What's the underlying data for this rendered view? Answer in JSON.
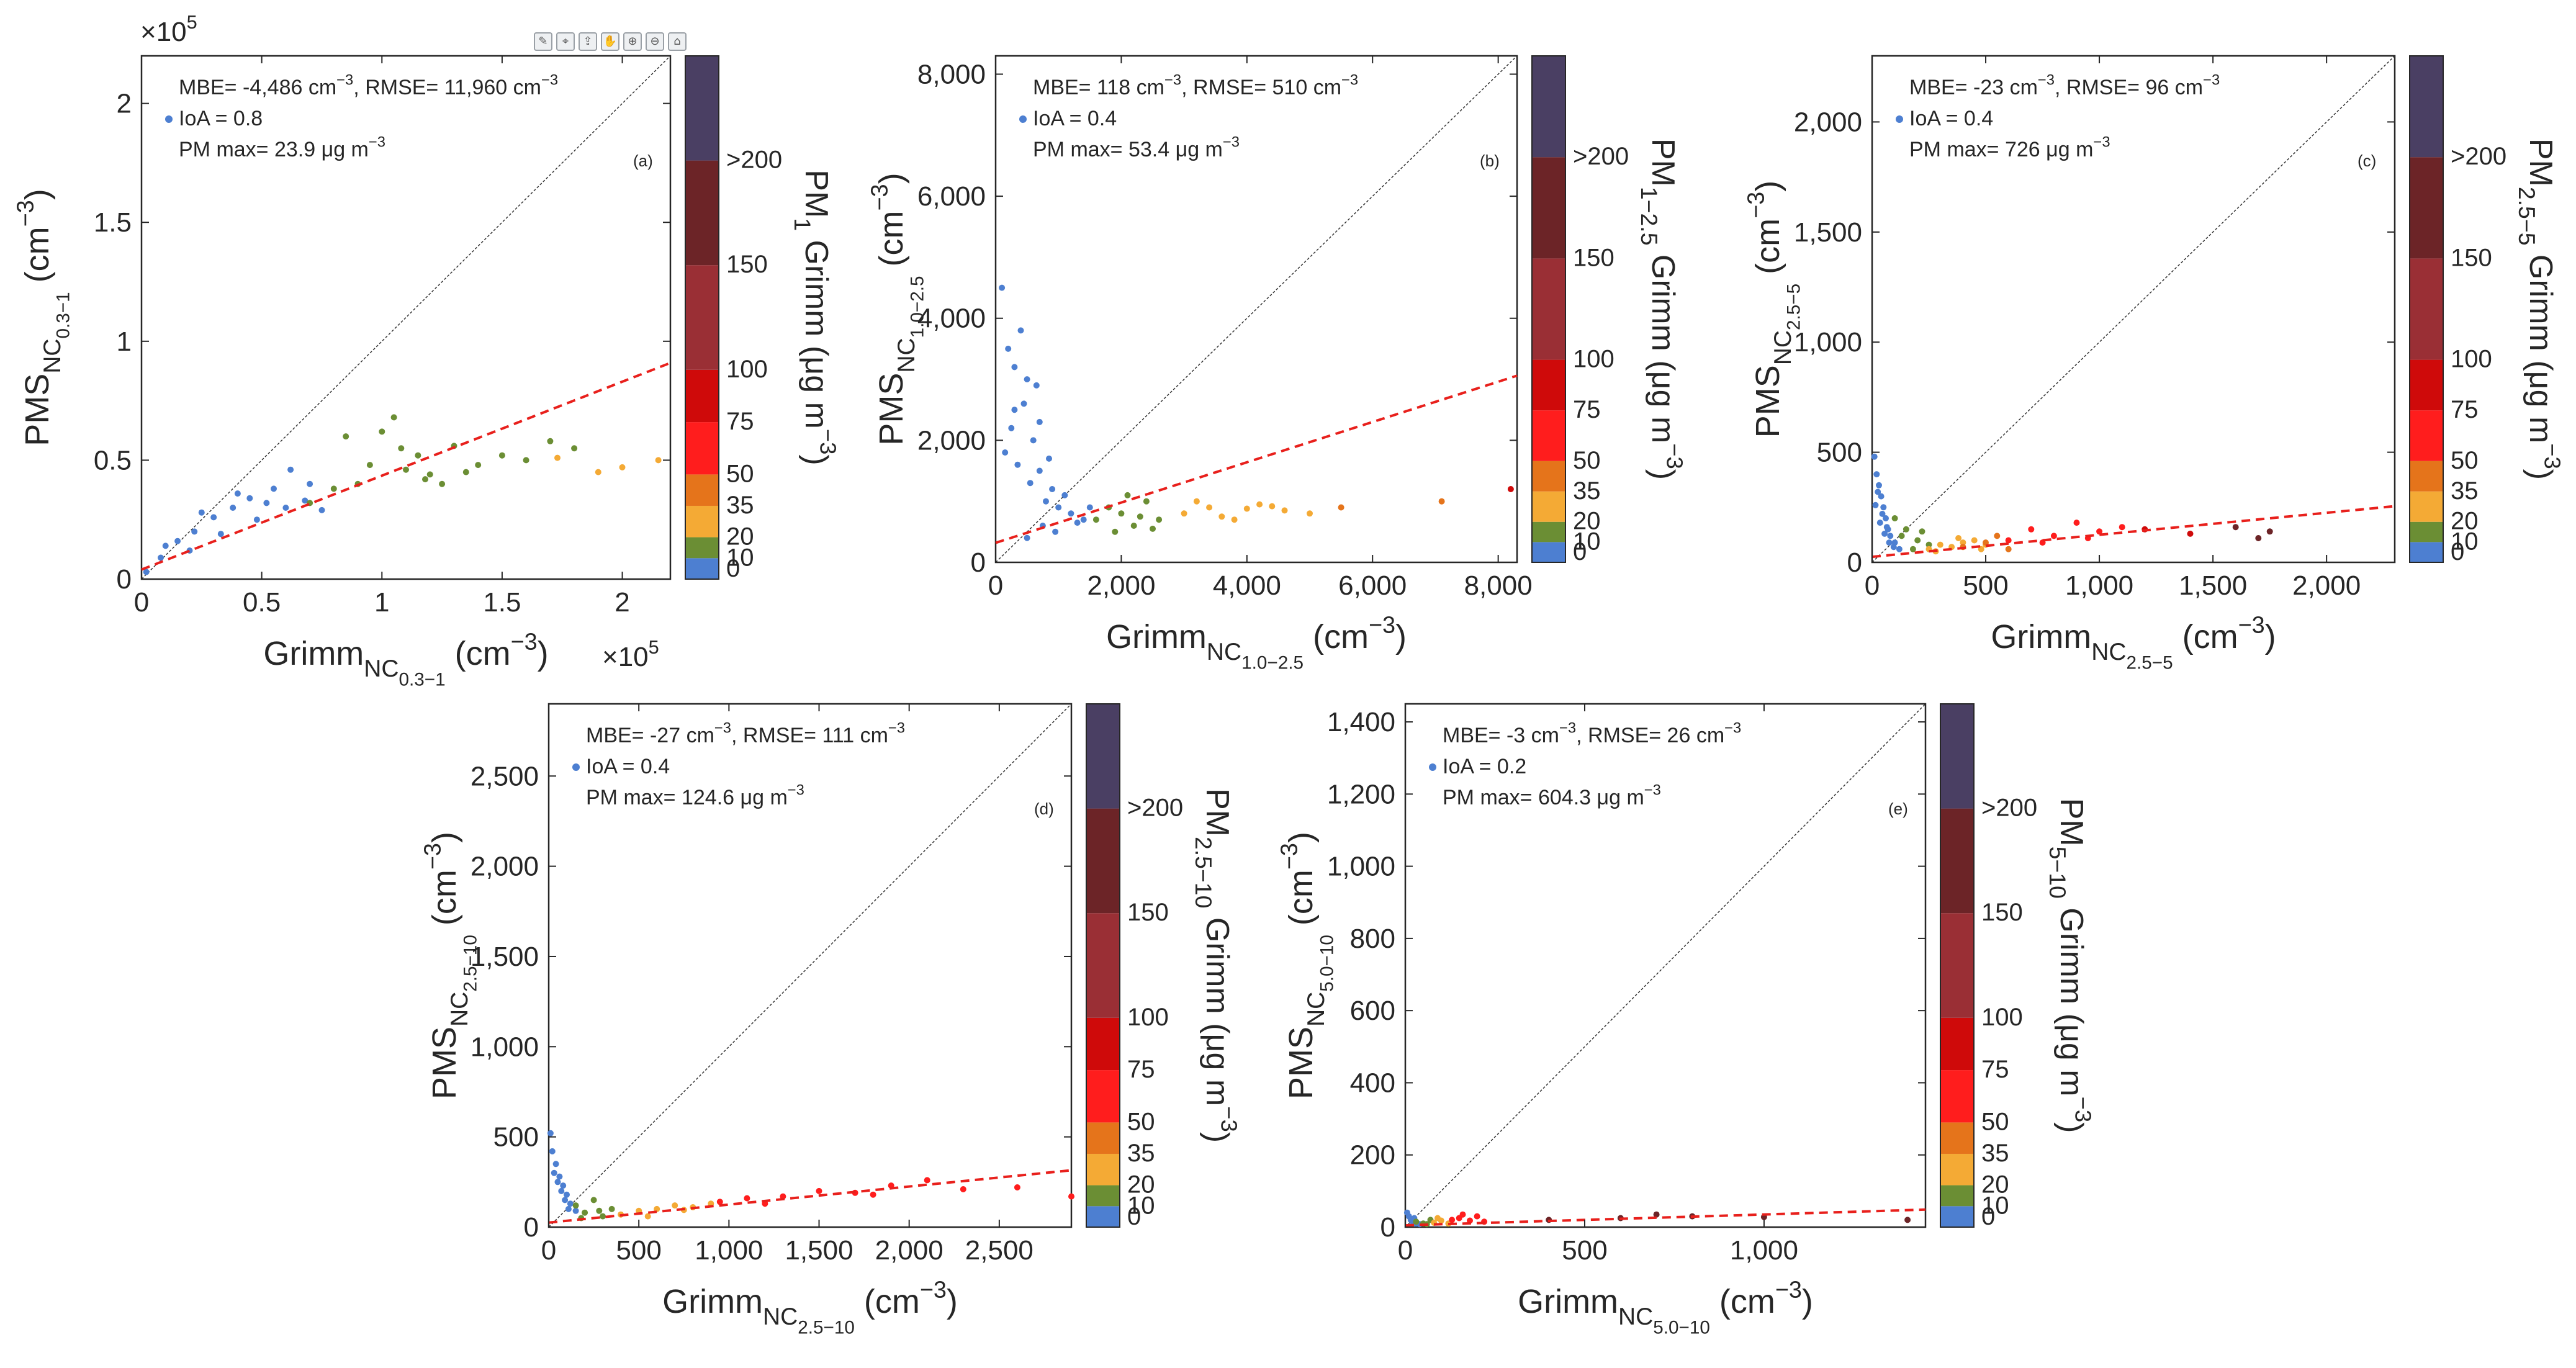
{
  "colorbar": {
    "labels": [
      "0",
      "10",
      "20",
      "35",
      "50",
      "75",
      "100",
      "150",
      ">200"
    ],
    "colors": [
      "#4d7fd1",
      "#6b8e34",
      "#f4aa35",
      "#e5741b",
      "#ff1d1d",
      "#cf0a0a",
      "#9a2f35",
      "#6c2427",
      "#4a3f63"
    ],
    "bins": [
      0,
      10,
      20,
      35,
      50,
      75,
      100,
      150,
      200,
      250
    ]
  },
  "toolbar": {
    "icons": [
      "brush-icon",
      "datatip-icon",
      "export-icon",
      "pan-icon",
      "zoom-in-icon",
      "zoom-out-icon",
      "home-icon"
    ]
  },
  "chart_data": [
    {
      "type": "scatter",
      "panel": "(a)",
      "ylabel_main": "PMS",
      "ylabel_sub": "NC",
      "ylabel_subsub": "0.3−1",
      "ylabel_unit": "(cm",
      "xlabel_main": "Grimm",
      "xlabel_sub": "NC",
      "xlabel_subsub": "0.3−1",
      "xlabel_unit": "(cm",
      "xlim": [
        0,
        220000
      ],
      "ylim": [
        0,
        220000
      ],
      "xticks": [
        0,
        50000,
        100000,
        150000,
        200000
      ],
      "xticklabels": [
        "0",
        "0.5",
        "1",
        "1.5",
        "2"
      ],
      "yticks": [
        0,
        50000,
        100000,
        150000,
        200000
      ],
      "yticklabels": [
        "0",
        "0.5",
        "1",
        "1.5",
        "2"
      ],
      "exponent": "×10",
      "exponent_power": "5",
      "stats": {
        "line1": "MBE= -4,486 cm",
        "line1b": ", RMSE= 11,960 cm",
        "line2": "IoA = 0.8",
        "line3": "PM max= 23.9 μg m"
      },
      "cbar_title": "PM",
      "cbar_sub": "1",
      "cbar_rest": " Grimm (μg m",
      "fit": {
        "intercept": 4000,
        "slope": 0.395
      },
      "series": [
        {
          "x": [
            2000,
            8000,
            15000,
            22000,
            30000,
            38000,
            45000,
            52000,
            60000,
            68000,
            75000,
            10000,
            25000,
            40000,
            55000,
            70000,
            33000,
            48000,
            20000,
            62000
          ],
          "y": [
            3000,
            9000,
            16000,
            20000,
            26000,
            30000,
            34000,
            32000,
            30000,
            33000,
            29000,
            14000,
            28000,
            36000,
            38000,
            40000,
            19000,
            25000,
            12000,
            46000
          ],
          "bin": 0
        },
        {
          "x": [
            70000,
            80000,
            90000,
            95000,
            100000,
            105000,
            110000,
            115000,
            120000,
            125000,
            130000,
            140000,
            150000,
            160000,
            170000,
            180000,
            85000,
            108000,
            118000,
            135000
          ],
          "y": [
            32000,
            38000,
            40000,
            48000,
            62000,
            68000,
            46000,
            52000,
            44000,
            40000,
            56000,
            48000,
            52000,
            50000,
            58000,
            55000,
            60000,
            55000,
            42000,
            45000
          ],
          "bin": 1
        },
        {
          "x": [
            173000,
            190000,
            200000,
            215000
          ],
          "y": [
            51000,
            45000,
            47000,
            50000
          ],
          "bin": 2
        }
      ]
    },
    {
      "type": "scatter",
      "panel": "(b)",
      "ylabel_main": "PMS",
      "ylabel_sub": "NC",
      "ylabel_subsub": "1.0−2.5",
      "ylabel_unit": "(cm",
      "xlabel_main": "Grimm",
      "xlabel_sub": "NC",
      "xlabel_subsub": "1.0−2.5",
      "xlabel_unit": "(cm",
      "xlim": [
        0,
        8300
      ],
      "ylim": [
        0,
        8300
      ],
      "xticks": [
        0,
        2000,
        4000,
        6000,
        8000
      ],
      "xticklabels": [
        "0",
        "2,000",
        "4,000",
        "6,000",
        "8,000"
      ],
      "yticks": [
        0,
        2000,
        4000,
        6000,
        8000
      ],
      "yticklabels": [
        "0",
        "2,000",
        "4,000",
        "6,000",
        "8,000"
      ],
      "stats": {
        "line1": "MBE= 118 cm",
        "line1b": ", RMSE= 510 cm",
        "line2": "IoA = 0.4",
        "line3": "PM max= 53.4 μg m"
      },
      "cbar_title": "PM",
      "cbar_sub": "1−2.5",
      "cbar_rest": " Grimm (μg m",
      "fit": {
        "intercept": 320,
        "slope": 0.33
      },
      "series": [
        {
          "x": [
            100,
            200,
            300,
            400,
            500,
            600,
            700,
            800,
            900,
            1000,
            1200,
            1400,
            150,
            250,
            350,
            450,
            550,
            650,
            750,
            850,
            950,
            1100,
            1300,
            1500,
            300,
            500,
            700
          ],
          "y": [
            4500,
            3500,
            2500,
            3800,
            3000,
            2000,
            1500,
            1000,
            1200,
            900,
            800,
            700,
            1800,
            2200,
            1600,
            2600,
            1300,
            2900,
            600,
            1700,
            500,
            1100,
            650,
            900,
            3200,
            400,
            2300
          ],
          "bin": 0
        },
        {
          "x": [
            1600,
            1800,
            2000,
            2200,
            2400,
            2600,
            1900,
            2100,
            2300,
            2500
          ],
          "y": [
            700,
            900,
            800,
            600,
            1000,
            700,
            500,
            1100,
            750,
            550
          ],
          "bin": 1
        },
        {
          "x": [
            3000,
            3400,
            3800,
            4200,
            4600,
            5000,
            3200,
            3600,
            4000,
            4400
          ],
          "y": [
            800,
            900,
            700,
            950,
            850,
            800,
            1000,
            750,
            880,
            920
          ],
          "bin": 2
        },
        {
          "x": [
            5500,
            7100
          ],
          "y": [
            900,
            1000
          ],
          "bin": 3
        },
        {
          "x": [
            8200
          ],
          "y": [
            1200
          ],
          "bin": 5
        }
      ]
    },
    {
      "type": "scatter",
      "panel": "(c)",
      "ylabel_main": "PMS",
      "ylabel_sub": "NC",
      "ylabel_subsub": "2.5−5",
      "ylabel_unit": "(cm",
      "xlabel_main": "Grimm",
      "xlabel_sub": "NC",
      "xlabel_subsub": "2.5−5",
      "xlabel_unit": "(cm",
      "xlim": [
        0,
        2300
      ],
      "ylim": [
        0,
        2300
      ],
      "xticks": [
        0,
        500,
        1000,
        1500,
        2000
      ],
      "xticklabels": [
        "0",
        "500",
        "1,000",
        "1,500",
        "2,000"
      ],
      "yticks": [
        0,
        500,
        1000,
        1500,
        2000
      ],
      "yticklabels": [
        "0",
        "500",
        "1,000",
        "1,500",
        "2,000"
      ],
      "stats": {
        "line1": "MBE= -23 cm",
        "line1b": ", RMSE= 96 cm",
        "line2": "IoA = 0.4",
        "line3": "PM max= 726 μg m"
      },
      "cbar_title": "PM",
      "cbar_sub": "2.5−5",
      "cbar_rest": " Grimm (μg m",
      "fit": {
        "intercept": 25,
        "slope": 0.1
      },
      "series": [
        {
          "x": [
            10,
            20,
            30,
            40,
            50,
            60,
            70,
            80,
            100,
            120,
            15,
            35,
            55,
            75,
            95,
            25,
            45,
            65
          ],
          "y": [
            480,
            400,
            350,
            300,
            250,
            200,
            150,
            120,
            90,
            60,
            260,
            180,
            130,
            90,
            70,
            320,
            220,
            160
          ],
          "bin": 0
        },
        {
          "x": [
            100,
            150,
            200,
            250,
            130,
            180,
            220
          ],
          "y": [
            200,
            150,
            100,
            80,
            120,
            60,
            140
          ],
          "bin": 1
        },
        {
          "x": [
            250,
            300,
            350,
            400,
            450,
            500,
            280,
            380,
            480
          ],
          "y": [
            60,
            80,
            70,
            90,
            100,
            80,
            50,
            110,
            60
          ],
          "bin": 2
        },
        {
          "x": [
            400,
            500,
            600,
            550
          ],
          "y": [
            70,
            90,
            60,
            120
          ],
          "bin": 3
        },
        {
          "x": [
            600,
            700,
            800,
            900,
            1000,
            1100,
            750,
            950
          ],
          "y": [
            100,
            150,
            120,
            180,
            140,
            160,
            90,
            110
          ],
          "bin": 4
        },
        {
          "x": [
            1200,
            1400
          ],
          "y": [
            150,
            130
          ],
          "bin": 5
        },
        {
          "x": [
            1600,
            1750,
            1700
          ],
          "y": [
            160,
            140,
            110
          ],
          "bin": 7
        }
      ]
    },
    {
      "type": "scatter",
      "panel": "(d)",
      "ylabel_main": "PMS",
      "ylabel_sub": "NC",
      "ylabel_subsub": "2.5−10",
      "ylabel_unit": "(cm",
      "xlabel_main": "Grimm",
      "xlabel_sub": "NC",
      "xlabel_subsub": "2.5−10",
      "xlabel_unit": "(cm",
      "xlim": [
        0,
        2900
      ],
      "ylim": [
        0,
        2900
      ],
      "xticks": [
        0,
        500,
        1000,
        1500,
        2000,
        2500
      ],
      "xticklabels": [
        "0",
        "500",
        "1,000",
        "1,500",
        "2,000",
        "2,500"
      ],
      "yticks": [
        0,
        500,
        1000,
        1500,
        2000,
        2500
      ],
      "yticklabels": [
        "0",
        "500",
        "1,000",
        "1,500",
        "2,000",
        "2,500"
      ],
      "stats": {
        "line1": "MBE= -27 cm",
        "line1b": ", RMSE= 111 cm",
        "line2": "IoA = 0.4",
        "line3": "PM max= 124.6 μg m"
      },
      "cbar_title": "PM",
      "cbar_sub": "2.5−10",
      "cbar_rest": " Grimm (μg m",
      "fit": {
        "intercept": 25,
        "slope": 0.1
      },
      "series": [
        {
          "x": [
            10,
            20,
            40,
            60,
            80,
            100,
            120,
            150,
            30,
            50,
            70,
            90,
            110
          ],
          "y": [
            520,
            420,
            350,
            280,
            230,
            180,
            130,
            90,
            300,
            250,
            200,
            150,
            100
          ],
          "bin": 0
        },
        {
          "x": [
            150,
            200,
            250,
            300,
            350,
            180,
            280
          ],
          "y": [
            120,
            80,
            150,
            60,
            100,
            50,
            90
          ],
          "bin": 1
        },
        {
          "x": [
            400,
            500,
            600,
            700,
            800,
            900,
            550,
            750
          ],
          "y": [
            70,
            90,
            100,
            120,
            110,
            130,
            60,
            95
          ],
          "bin": 2
        },
        {
          "x": [
            950,
            1100,
            1300,
            1500,
            1700,
            1900,
            2100,
            2300,
            2600,
            2900,
            1200,
            1800
          ],
          "y": [
            140,
            160,
            170,
            200,
            190,
            230,
            260,
            210,
            220,
            170,
            130,
            180
          ],
          "bin": 4
        }
      ]
    },
    {
      "type": "scatter",
      "panel": "(e)",
      "ylabel_main": "PMS",
      "ylabel_sub": "NC",
      "ylabel_subsub": "5.0−10",
      "ylabel_unit": "(cm",
      "xlabel_main": "Grimm",
      "xlabel_sub": "NC",
      "xlabel_subsub": "5.0−10",
      "xlabel_unit": "(cm",
      "xlim": [
        0,
        1450
      ],
      "ylim": [
        0,
        1450
      ],
      "xticks": [
        0,
        500,
        1000
      ],
      "xticklabels": [
        "0",
        "500",
        "1,000"
      ],
      "yticks": [
        0,
        200,
        400,
        600,
        800,
        1000,
        1200,
        1400
      ],
      "yticklabels": [
        "0",
        "200",
        "400",
        "600",
        "800",
        "1,000",
        "1,200",
        "1,400"
      ],
      "stats": {
        "line1": "MBE= -3 cm",
        "line1b": ", RMSE= 26 cm",
        "line2": "IoA = 0.2",
        "line3": "PM max= 604.3 μg m"
      },
      "cbar_title": "PM",
      "cbar_sub": "5−10",
      "cbar_rest": " Grimm (μg m",
      "fit": {
        "intercept": 5,
        "slope": 0.03
      },
      "series": [
        {
          "x": [
            5,
            10,
            15,
            20,
            25,
            30,
            40
          ],
          "y": [
            40,
            30,
            20,
            15,
            25,
            10,
            8
          ],
          "bin": 0
        },
        {
          "x": [
            30,
            50,
            70,
            60
          ],
          "y": [
            15,
            10,
            20,
            8
          ],
          "bin": 1
        },
        {
          "x": [
            80,
            100,
            120,
            90
          ],
          "y": [
            12,
            18,
            10,
            25
          ],
          "bin": 2
        },
        {
          "x": [
            130,
            150,
            180,
            200,
            220,
            160
          ],
          "y": [
            20,
            25,
            18,
            30,
            15,
            35
          ],
          "bin": 4
        },
        {
          "x": [
            400,
            600,
            800,
            1000,
            1400,
            700
          ],
          "y": [
            20,
            25,
            30,
            28,
            20,
            35
          ],
          "bin": 7
        }
      ]
    }
  ]
}
